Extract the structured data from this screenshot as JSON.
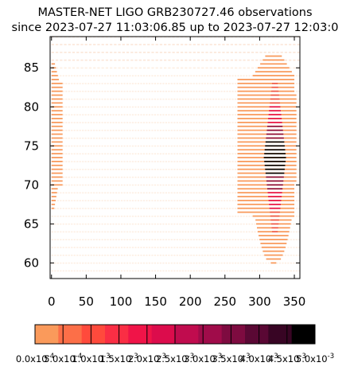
{
  "chart_data": [
    {
      "type": "heatmap",
      "title_lines": [
        "MASTER-NET LIGO GRB230727.46 observations",
        "since 2023-07-27 11:03:06.85 up to 2023-07-27 12:03:0"
      ],
      "xlim": [
        -2,
        358
      ],
      "ylim": [
        58,
        89
      ],
      "xticks": [
        "0",
        "50",
        "100",
        "150",
        "200",
        "250",
        "300",
        "350"
      ],
      "xtick_values": [
        0,
        50,
        100,
        150,
        200,
        250,
        300,
        350
      ],
      "yticks": [
        "60",
        "65",
        "70",
        "75",
        "80",
        "85"
      ],
      "ytick_values": [
        60,
        65,
        70,
        75,
        80,
        85
      ],
      "grid": false,
      "colors": {
        "background_tiles": "#fdeee2",
        "low_probability": "#f99b5e",
        "mid_probability": "#e8104a",
        "high_probability": "#8a0b3a",
        "peak": "#000000"
      },
      "regions": [
        {
          "role": "observed area (low probability)",
          "lon_min": 0,
          "lon_max": 17,
          "lat_min": 67,
          "lat_max": 85.5
        },
        {
          "role": "observed area (low probability)",
          "lon_min": 268,
          "lon_max": 355,
          "lat_min": 60,
          "lat_max": 86.5
        },
        {
          "role": "probability peak",
          "lon_center": 322,
          "lat_center": 73.5
        }
      ]
    },
    {
      "type": "colorbar",
      "colors": [
        "#fa9a5b",
        "#fc6f48",
        "#ff4a3c",
        "#fa2e44",
        "#f01448",
        "#dc0c4c",
        "#c00c4e",
        "#a00c4a",
        "#7e0b40",
        "#5a0834",
        "#380524",
        "#000000"
      ],
      "tick_labels": [
        "0.0x10^-4",
        "5.0x10^-4",
        "1.0x10^-3",
        "1.5x10^-3",
        "2.0x10^-3",
        "2.5x10^-3",
        "3.0x10^-3",
        "3.5x10^-3",
        "4.0x10^-3",
        "4.5x10^-3",
        "5.0x10^-3"
      ],
      "tick_labels_display": [
        "0.0x10",
        "5.0x10",
        "1.0x10",
        "1.5x10",
        "2.0x10",
        "2.5x10",
        "3.0x10",
        "3.5x10",
        "4.0x10",
        "4.5x10",
        "5.0x10"
      ],
      "tick_exponents": [
        "-4",
        "-4",
        "-3",
        "-3",
        "-3",
        "-3",
        "-3",
        "-3",
        "-3",
        "-3",
        "-3"
      ],
      "range": [
        0,
        0.005
      ]
    }
  ]
}
